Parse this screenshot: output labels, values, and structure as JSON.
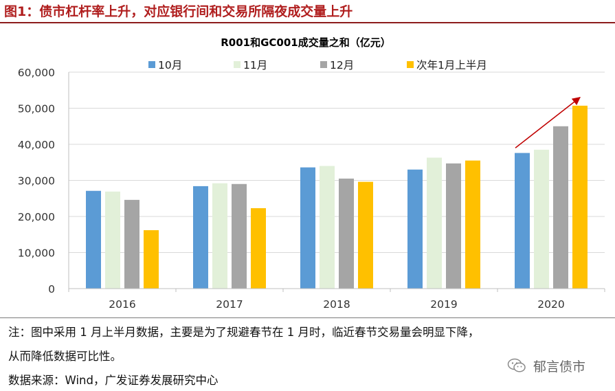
{
  "figure": {
    "title": "图1：债市杠杆率上升，对应银行间和交易所隔夜成交量上升",
    "note_line1": "注：图中采用 1 月上半月数据，主要是为了规避春节在 1 月时，临近春节交易量会明显下降，",
    "note_line2": "从而降低数据可比性。",
    "source": "数据来源：Wind，广发证券发展研究中心",
    "watermark": "郁言债市",
    "watermark_icon": "wechat-icon"
  },
  "colors": {
    "title_red": "#b01e1e",
    "series": [
      "#5b9bd5",
      "#e2f0d9",
      "#a5a5a5",
      "#ffc000"
    ],
    "arrow": "#c00000",
    "grid": "#d9d9d9"
  },
  "chart_data": {
    "type": "bar",
    "title": "R001和GC001成交量之和（亿元）",
    "xlabel": "",
    "ylabel": "",
    "ylim": [
      0,
      60000
    ],
    "yticks": [
      0,
      10000,
      20000,
      30000,
      40000,
      50000,
      60000
    ],
    "ytick_labels": [
      "0",
      "10,000",
      "20,000",
      "30,000",
      "40,000",
      "50,000",
      "60,000"
    ],
    "grid": true,
    "legend_position": "top",
    "categories": [
      "2016",
      "2017",
      "2018",
      "2019",
      "2020"
    ],
    "series": [
      {
        "name": "10月",
        "values": [
          27100,
          28400,
          33600,
          33000,
          37600
        ]
      },
      {
        "name": "11月",
        "values": [
          26900,
          29200,
          34000,
          36300,
          38500
        ]
      },
      {
        "name": "12月",
        "values": [
          24600,
          29000,
          30500,
          34700,
          45000
        ]
      },
      {
        "name": "次年1月上半月",
        "values": [
          16200,
          22300,
          29600,
          35500,
          50700
        ]
      }
    ],
    "annotations": [
      {
        "type": "arrow",
        "from": {
          "category": "2020",
          "value": 39000
        },
        "to": {
          "category": "2020",
          "value": 53000
        }
      }
    ]
  }
}
